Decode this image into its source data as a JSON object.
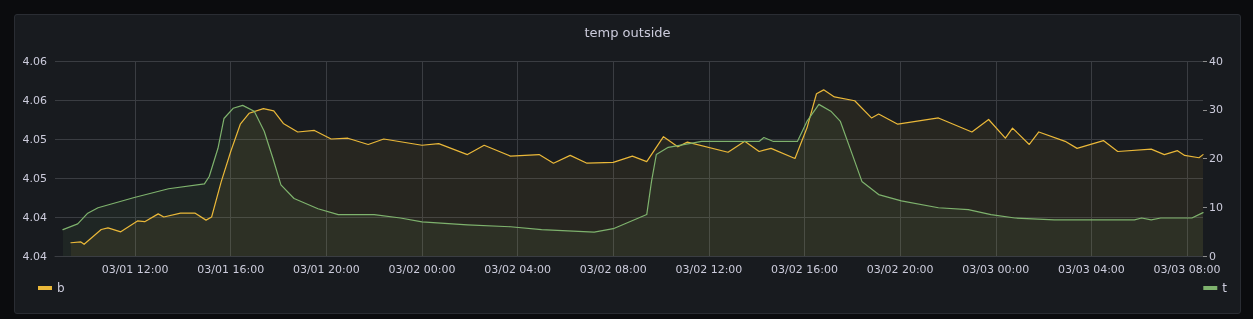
{
  "chart_data": {
    "type": "area",
    "title": "temp outside",
    "xlim": [
      "--03-01T08:39",
      "--03-03T08:40"
    ],
    "xticks": [
      {
        "value": "--03-01T12:00",
        "label": "03/01 12:00"
      },
      {
        "value": "--03-01T16:00",
        "label": "03/01 16:00"
      },
      {
        "value": "--03-01T20:00",
        "label": "03/01 20:00"
      },
      {
        "value": "--03-02T00:00",
        "label": "03/02 00:00"
      },
      {
        "value": "--03-02T04:00",
        "label": "03/02 04:00"
      },
      {
        "value": "--03-02T08:00",
        "label": "03/02 08:00"
      },
      {
        "value": "--03-02T12:00",
        "label": "03/02 12:00"
      },
      {
        "value": "--03-02T16:00",
        "label": "03/02 16:00"
      },
      {
        "value": "--03-02T20:00",
        "label": "03/02 20:00"
      },
      {
        "value": "--03-03T00:00",
        "label": "03/03 00:00"
      },
      {
        "value": "--03-03T04:00",
        "label": "03/03 04:00"
      },
      {
        "value": "--03-03T08:00",
        "label": "03/03 08:00"
      }
    ],
    "ylim": [
      4.035,
      4.06
    ],
    "yticks": [
      {
        "value": 4.035,
        "label": "4.04"
      },
      {
        "value": 4.04,
        "label": "4.04"
      },
      {
        "value": 4.045,
        "label": "4.05"
      },
      {
        "value": 4.05,
        "label": "4.05"
      },
      {
        "value": 4.055,
        "label": "4.06"
      },
      {
        "value": 4.06,
        "label": "4.06"
      }
    ],
    "y2lim": [
      0,
      40
    ],
    "y2ticks": [
      0,
      10,
      20,
      30,
      40
    ],
    "grid": true,
    "legend": "bottom",
    "marker": "none",
    "line_style": "solid",
    "series": [
      {
        "name": "b",
        "color": "#eab839",
        "x": [
          "--03-01T09:19",
          "--03-01T09:44",
          "--03-01T09:52",
          "--03-01T10:35",
          "--03-01T10:52",
          "--03-01T11:24",
          "--03-01T12:06",
          "--03-01T12:24",
          "--03-01T12:58",
          "--03-01T13:12",
          "--03-01T13:54",
          "--03-01T14:30",
          "--03-01T14:58",
          "--03-01T15:12",
          "--03-01T15:36",
          "--03-01T16:00",
          "--03-01T16:24",
          "--03-01T16:46",
          "--03-01T17:22",
          "--03-01T17:48",
          "--03-01T18:12",
          "--03-01T18:48",
          "--03-01T19:30",
          "--03-01T20:12",
          "--03-01T20:54",
          "--03-01T21:45",
          "--03-01T22:24",
          "--03-02T00:00",
          "--03-02T00:42",
          "--03-02T01:54",
          "--03-02T02:36",
          "--03-02T03:42",
          "--03-02T04:54",
          "--03-02T05:30",
          "--03-02T06:12",
          "--03-02T06:54",
          "--03-02T08:00",
          "--03-02T08:48",
          "--03-02T09:24",
          "--03-02T10:06",
          "--03-02T10:42",
          "--03-02T11:06",
          "--03-02T12:48",
          "--03-02T13:30",
          "--03-02T14:06",
          "--03-02T14:36",
          "--03-02T15:36",
          "--03-02T16:06",
          "--03-02T16:30",
          "--03-02T16:48",
          "--03-02T17:15",
          "--03-02T18:06",
          "--03-02T18:48",
          "--03-02T19:06",
          "--03-02T19:54",
          "--03-02T21:36",
          "--03-02T23:00",
          "--03-02T23:42",
          "--03-03T00:24",
          "--03-03T00:42",
          "--03-03T01:24",
          "--03-03T01:48",
          "--03-03T02:54",
          "--03-03T03:24",
          "--03-03T04:30",
          "--03-03T05:06",
          "--03-03T06:30",
          "--03-03T07:03",
          "--03-03T07:36",
          "--03-03T07:54",
          "--03-03T08:30",
          "--03-03T08:40"
        ],
        "values": [
          4.0367,
          4.0368,
          4.0365,
          4.0384,
          4.0386,
          4.0381,
          4.0395,
          4.0394,
          4.0404,
          4.04,
          4.0405,
          4.0405,
          4.0396,
          4.04,
          4.0445,
          4.0484,
          4.0519,
          4.0533,
          4.0539,
          4.0536,
          4.052,
          4.0509,
          4.0511,
          4.05,
          4.0501,
          4.0493,
          4.05,
          4.0492,
          4.0494,
          4.048,
          4.0492,
          4.0478,
          4.048,
          4.0469,
          4.0479,
          4.0469,
          4.047,
          4.0478,
          4.0471,
          4.0503,
          4.049,
          4.0496,
          4.0483,
          4.0497,
          4.0484,
          4.0488,
          4.0475,
          4.0514,
          4.0558,
          4.0563,
          4.0554,
          4.0549,
          4.0527,
          4.0532,
          4.0519,
          4.0527,
          4.0509,
          4.0525,
          4.0501,
          4.0514,
          4.0493,
          4.0509,
          4.0497,
          4.0488,
          4.0498,
          4.0484,
          4.0487,
          4.048,
          4.0485,
          4.0479,
          4.0476,
          4.048
        ]
      },
      {
        "name": "t",
        "color": "#7eb26d",
        "axis": "y2",
        "x": [
          "--03-01T08:59",
          "--03-01T09:36",
          "--03-01T10:00",
          "--03-01T10:27",
          "--03-01T11:58",
          "--03-01T13:24",
          "--03-01T14:54",
          "--03-01T15:06",
          "--03-01T15:28",
          "--03-01T15:43",
          "--03-01T16:06",
          "--03-01T16:30",
          "--03-01T16:59",
          "--03-01T17:24",
          "--03-01T17:46",
          "--03-01T18:06",
          "--03-01T18:39",
          "--03-01T19:39",
          "--03-01T20:30",
          "--03-01T22:00",
          "--03-01T23:06",
          "--03-02T00:00",
          "--03-02T01:54",
          "--03-02T03:42",
          "--03-02T05:00",
          "--03-02T07:12",
          "--03-02T08:00",
          "--03-02T09:24",
          "--03-02T09:36",
          "--03-02T09:48",
          "--03-02T10:18",
          "--03-02T11:42",
          "--03-02T14:06",
          "--03-02T14:18",
          "--03-02T14:42",
          "--03-02T15:42",
          "--03-02T16:06",
          "--03-02T16:36",
          "--03-02T17:06",
          "--03-02T17:30",
          "--03-02T18:00",
          "--03-02T18:24",
          "--03-02T19:06",
          "--03-02T20:03",
          "--03-02T21:36",
          "--03-02T22:51",
          "--03-02T23:48",
          "--03-03T00:48",
          "--03-03T02:27",
          "--03-03T05:48",
          "--03-03T06:06",
          "--03-03T06:30",
          "--03-03T06:54",
          "--03-03T08:12",
          "--03-03T08:40"
        ],
        "values": [
          5.4,
          6.6,
          8.7,
          9.9,
          12.0,
          13.8,
          14.8,
          16.3,
          22.1,
          28.2,
          30.3,
          30.9,
          29.7,
          25.6,
          20.0,
          14.6,
          11.8,
          9.7,
          8.5,
          8.5,
          7.8,
          7.0,
          6.4,
          6.0,
          5.4,
          4.9,
          5.6,
          8.5,
          15.3,
          20.8,
          22.3,
          23.5,
          23.5,
          24.3,
          23.5,
          23.5,
          27.6,
          31.1,
          29.7,
          27.6,
          20.8,
          15.3,
          12.6,
          11.3,
          9.9,
          9.5,
          8.5,
          7.8,
          7.4,
          7.4,
          7.8,
          7.4,
          7.8,
          7.8,
          8.9
        ]
      }
    ]
  }
}
